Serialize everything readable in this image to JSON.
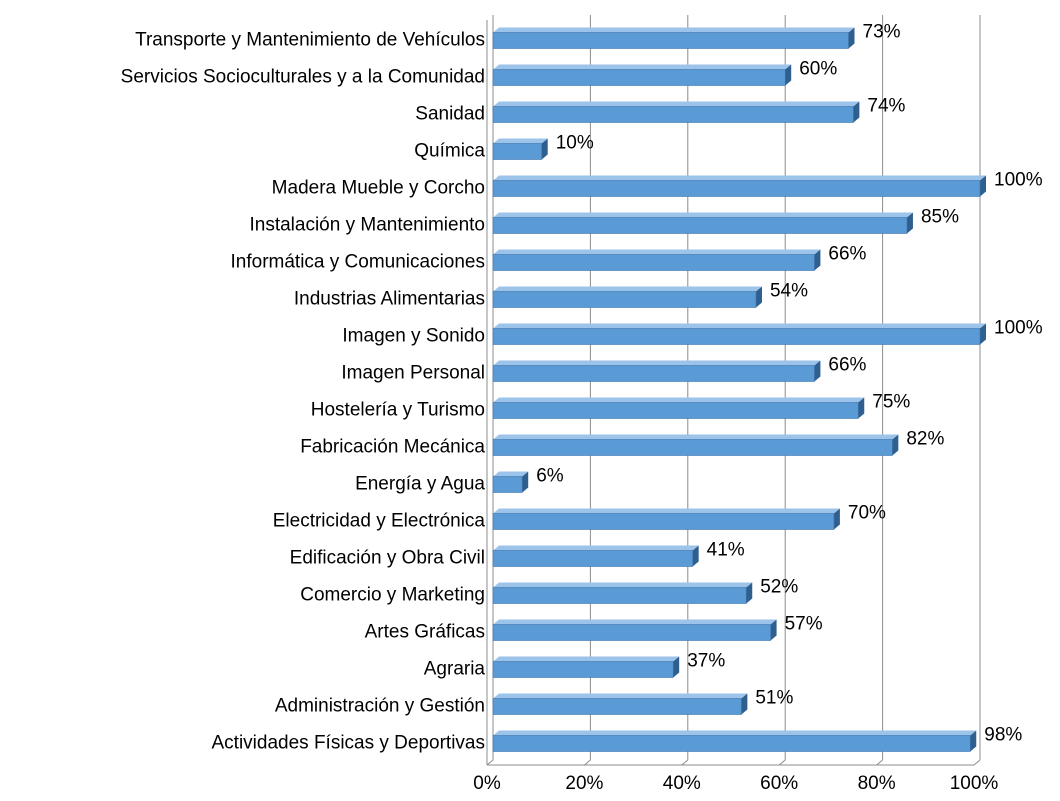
{
  "chart_data": {
    "type": "bar",
    "orientation": "horizontal",
    "categories": [
      "Transporte y Mantenimiento de Vehículos",
      "Servicios Socioculturales y a la Comunidad",
      "Sanidad",
      "Química",
      "Madera Mueble y Corcho",
      "Instalación y Mantenimiento",
      "Informática y Comunicaciones",
      "Industrias Alimentarias",
      "Imagen y Sonido",
      "Imagen Personal",
      "Hostelería y Turismo",
      "Fabricación Mecánica",
      "Energía y Agua",
      "Electricidad y Electrónica",
      "Edificación y Obra Civil",
      "Comercio y Marketing",
      "Artes Gráficas",
      "Agraria",
      "Administración y Gestión",
      "Actividades Físicas y Deportivas"
    ],
    "values": [
      73,
      60,
      74,
      10,
      100,
      85,
      66,
      54,
      100,
      66,
      75,
      82,
      6,
      70,
      41,
      52,
      57,
      37,
      51,
      98
    ],
    "value_labels": [
      "73%",
      "60%",
      "74%",
      "10%",
      "100%",
      "85%",
      "66%",
      "54%",
      "100%",
      "66%",
      "75%",
      "82%",
      "6%",
      "70%",
      "41%",
      "52%",
      "57%",
      "37%",
      "51%",
      "98%"
    ],
    "color": "#5b9bd5",
    "xlim": [
      0,
      100
    ],
    "xticks": [
      {
        "value": 0,
        "label": "0%"
      },
      {
        "value": 20,
        "label": "20%"
      },
      {
        "value": 40,
        "label": "40%"
      },
      {
        "value": 60,
        "label": "60%"
      },
      {
        "value": 80,
        "label": "80%"
      },
      {
        "value": 100,
        "label": "100%"
      }
    ],
    "grid": true
  }
}
